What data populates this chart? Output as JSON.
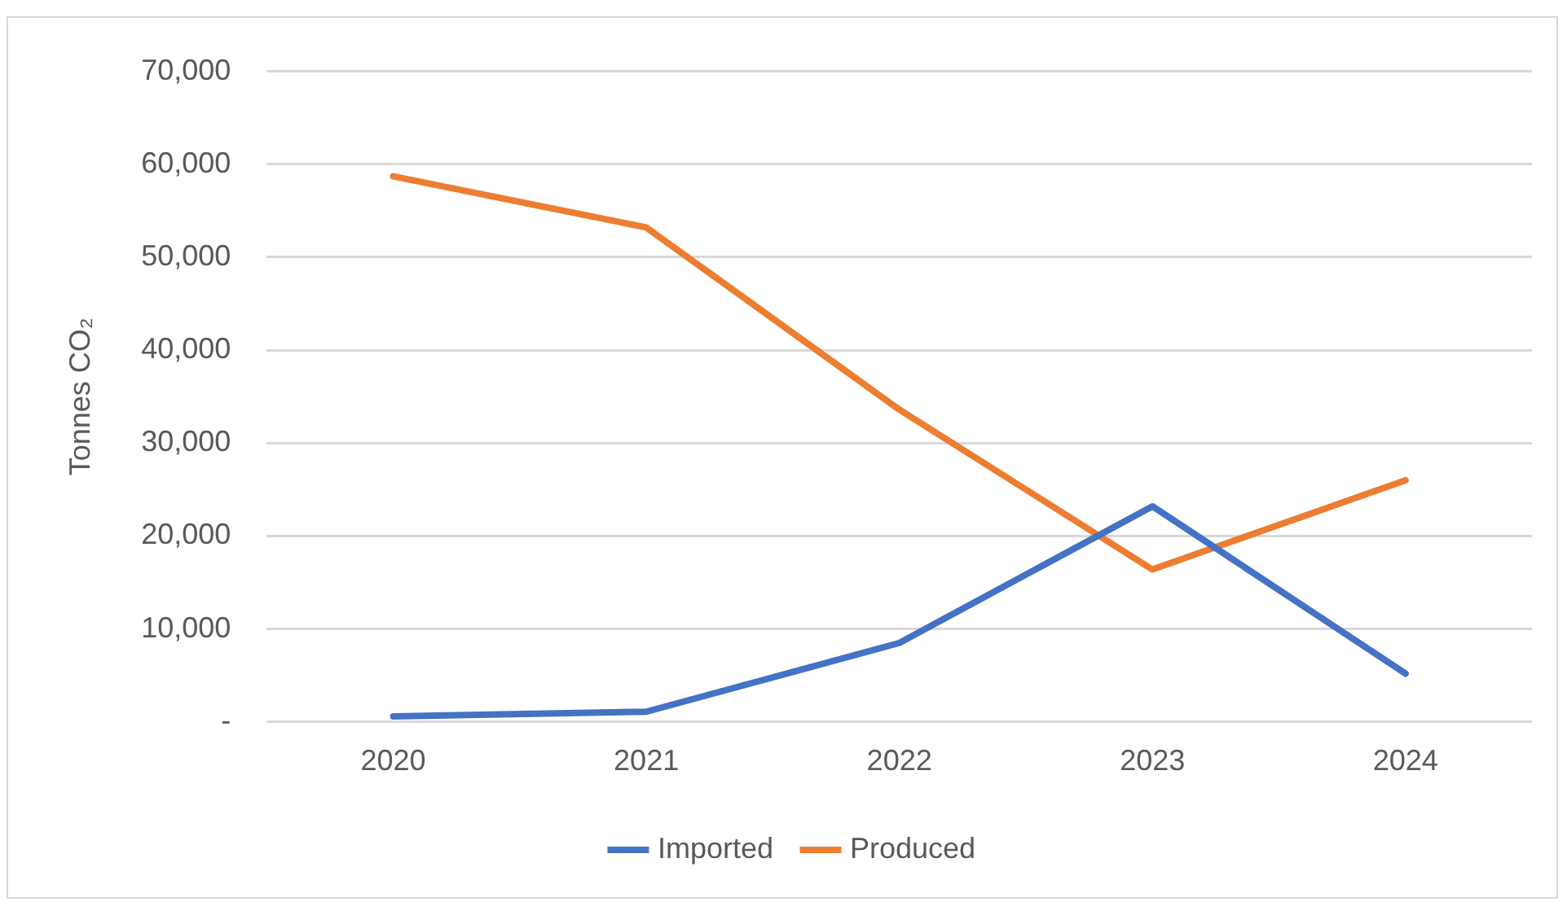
{
  "chart_data": {
    "type": "line",
    "ylabel": "Tonnes CO₂",
    "categories": [
      "2020",
      "2021",
      "2022",
      "2023",
      "2024"
    ],
    "series": [
      {
        "name": "Imported",
        "color": "#4472c4",
        "values": [
          600,
          1100,
          8500,
          23200,
          5200
        ]
      },
      {
        "name": "Produced",
        "color": "#ed7d31",
        "values": [
          58700,
          53200,
          33600,
          16400,
          26000
        ]
      }
    ],
    "ylim": [
      0,
      70000
    ],
    "yticks": [
      {
        "value": 0,
        "label": "-"
      },
      {
        "value": 10000,
        "label": "10,000"
      },
      {
        "value": 20000,
        "label": "20,000"
      },
      {
        "value": 30000,
        "label": "30,000"
      },
      {
        "value": 40000,
        "label": "40,000"
      },
      {
        "value": 50000,
        "label": "50,000"
      },
      {
        "value": 60000,
        "label": "60,000"
      },
      {
        "value": 70000,
        "label": "70,000"
      }
    ],
    "grid": "y",
    "legend": "bottom",
    "marker": "none",
    "line_style": "solid"
  }
}
